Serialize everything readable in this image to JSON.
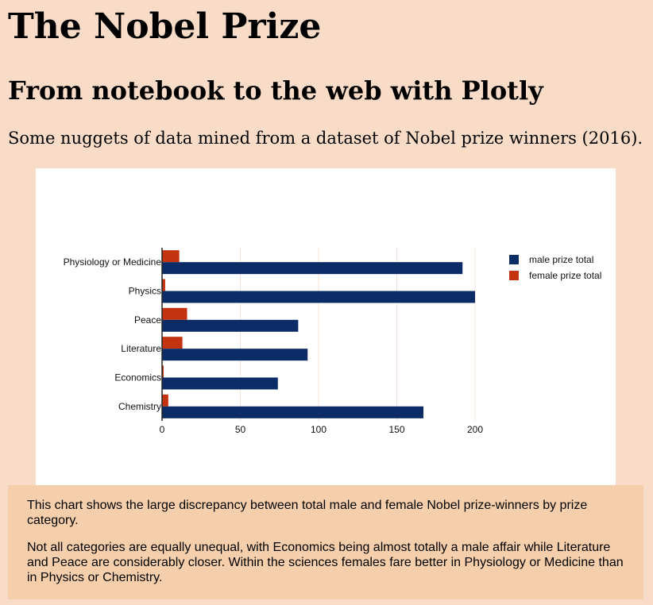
{
  "page": {
    "title": "The Nobel Prize",
    "subtitle": "From notebook to the web with Plotly",
    "intro": "Some nuggets of data mined from a dataset of Nobel prize winners (2016).",
    "notes": [
      "This chart shows the large discrepancy between total male and female Nobel prize-winners by prize category.",
      "Not all categories are equally unequal, with Economics being almost totally a male affair while Literature and Peace are considerably closer. Within the sciences females fare better in Physiology or Medicine than in Physics or Chemistry."
    ]
  },
  "colors": {
    "page_background": "#f8dcc7",
    "notes_background": "#f5cfac",
    "male": "#0b2c66",
    "female": "#c4330f"
  },
  "chart_data": {
    "type": "bar",
    "orientation": "horizontal",
    "categories": [
      "Chemistry",
      "Economics",
      "Literature",
      "Peace",
      "Physics",
      "Physiology or Medicine"
    ],
    "series": [
      {
        "name": "male prize total",
        "color": "#0b2c66",
        "values": [
          167,
          74,
          93,
          87,
          200,
          192
        ]
      },
      {
        "name": "female prize total",
        "color": "#c4330f",
        "values": [
          4,
          1,
          13,
          16,
          2,
          11
        ]
      }
    ],
    "xlim": [
      0,
      210
    ],
    "xticks": [
      "0",
      "50",
      "100",
      "150",
      "200"
    ],
    "tick_values": [
      0,
      50,
      100,
      150,
      200
    ],
    "grid": true,
    "legend_placement": "top-right"
  }
}
